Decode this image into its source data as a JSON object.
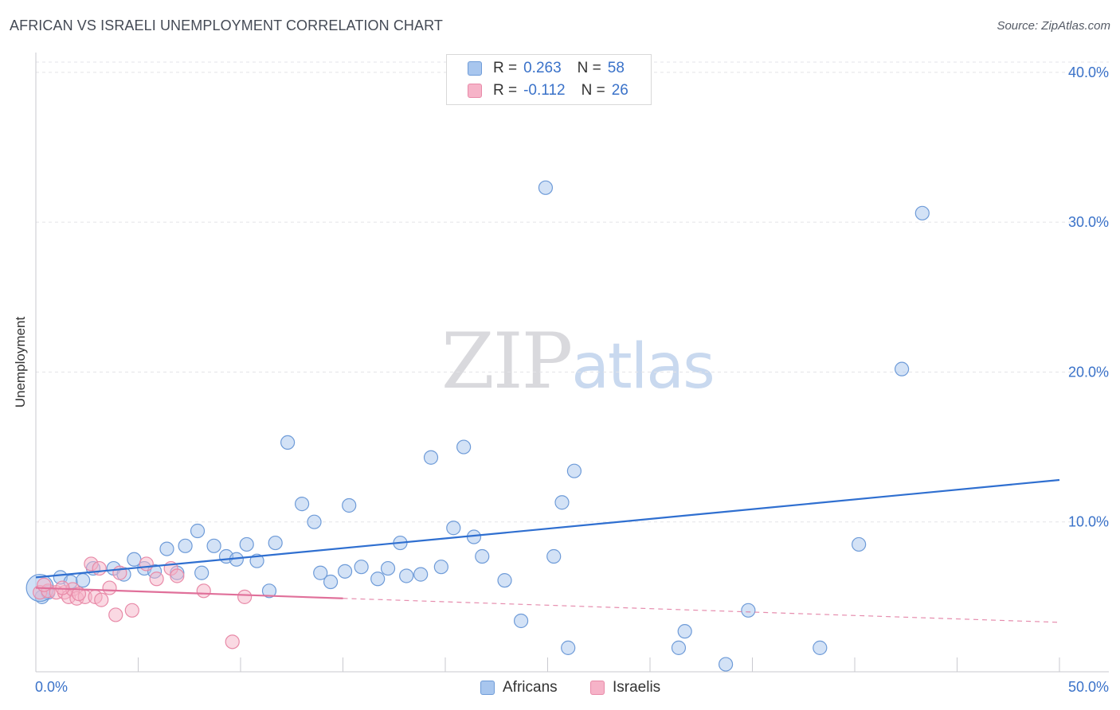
{
  "title": "AFRICAN VS ISRAELI UNEMPLOYMENT CORRELATION CHART",
  "source": "Source: ZipAtlas.com",
  "watermark": {
    "zip": "ZIP",
    "atlas": "atlas"
  },
  "legend": {
    "rows": [
      {
        "r_label": "R =",
        "r_value": "0.263",
        "n_label": "N =",
        "n_value": "58",
        "color": "#a8c6ee"
      },
      {
        "r_label": "R =",
        "r_value": "-0.112",
        "n_label": "N =",
        "n_value": "26",
        "color": "#f6b3c8"
      }
    ]
  },
  "bottom_legend": [
    {
      "label": "Africans",
      "color": "#a8c6ee"
    },
    {
      "label": "Israelis",
      "color": "#f6b3c8"
    }
  ],
  "chart_data": {
    "type": "scatter",
    "xlabel": "",
    "ylabel": "Unemployment",
    "xlim": [
      0,
      50
    ],
    "ylim": [
      0,
      41
    ],
    "x_tick_labels": [
      "0.0%",
      "50.0%"
    ],
    "y_ticks": [
      10,
      20,
      30,
      40
    ],
    "y_tick_labels": [
      "10.0%",
      "20.0%",
      "30.0%",
      "40.0%"
    ],
    "grid": true,
    "series": [
      {
        "name": "Africans",
        "color": "#a8c6ee",
        "stroke": "#6e9bd8",
        "trend": {
          "x": [
            0,
            50
          ],
          "y": [
            6.3,
            12.8
          ],
          "color": "#2f6fd0"
        },
        "points": [
          [
            0.3,
            5.0
          ],
          [
            0.6,
            5.3
          ],
          [
            1.2,
            6.3
          ],
          [
            1.7,
            6.0
          ],
          [
            2.3,
            6.1
          ],
          [
            2.8,
            6.9
          ],
          [
            3.8,
            6.9
          ],
          [
            4.3,
            6.5
          ],
          [
            4.8,
            7.5
          ],
          [
            5.3,
            6.9
          ],
          [
            5.8,
            6.7
          ],
          [
            6.4,
            8.2
          ],
          [
            6.9,
            6.6
          ],
          [
            7.3,
            8.4
          ],
          [
            7.9,
            9.4
          ],
          [
            8.1,
            6.6
          ],
          [
            8.7,
            8.4
          ],
          [
            9.3,
            7.7
          ],
          [
            9.8,
            7.5
          ],
          [
            10.3,
            8.5
          ],
          [
            10.8,
            7.4
          ],
          [
            11.4,
            5.4
          ],
          [
            11.7,
            8.6
          ],
          [
            12.3,
            15.3
          ],
          [
            13.0,
            11.2
          ],
          [
            13.6,
            10.0
          ],
          [
            13.9,
            6.6
          ],
          [
            14.4,
            6.0
          ],
          [
            15.1,
            6.7
          ],
          [
            15.3,
            11.1
          ],
          [
            15.9,
            7.0
          ],
          [
            16.7,
            6.2
          ],
          [
            17.2,
            6.9
          ],
          [
            17.8,
            8.6
          ],
          [
            18.1,
            6.4
          ],
          [
            18.8,
            6.5
          ],
          [
            19.3,
            14.3
          ],
          [
            19.8,
            7.0
          ],
          [
            20.4,
            9.6
          ],
          [
            20.9,
            15.0
          ],
          [
            21.4,
            9.0
          ],
          [
            21.8,
            7.7
          ],
          [
            22.9,
            6.1
          ],
          [
            23.7,
            3.4
          ],
          [
            24.9,
            32.3
          ],
          [
            25.3,
            7.7
          ],
          [
            25.7,
            11.3
          ],
          [
            26.0,
            1.6
          ],
          [
            26.3,
            13.4
          ],
          [
            31.4,
            1.6
          ],
          [
            31.7,
            2.7
          ],
          [
            33.7,
            0.5
          ],
          [
            34.8,
            4.1
          ],
          [
            38.3,
            1.6
          ],
          [
            40.2,
            8.5
          ],
          [
            42.3,
            20.2
          ],
          [
            43.3,
            30.6
          ],
          [
            0.2,
            5.6
          ]
        ]
      },
      {
        "name": "Israelis",
        "color": "#f6b3c8",
        "stroke": "#e88aa8",
        "trend": {
          "x": [
            0,
            15
          ],
          "y": [
            5.6,
            4.9
          ],
          "color": "#e0709a",
          "dashed_extension": {
            "x": [
              15,
              50
            ],
            "y": [
              4.9,
              3.3
            ]
          }
        },
        "points": [
          [
            0.2,
            5.3
          ],
          [
            0.6,
            5.4
          ],
          [
            1.0,
            5.3
          ],
          [
            1.4,
            5.3
          ],
          [
            1.6,
            5.0
          ],
          [
            1.8,
            5.5
          ],
          [
            2.0,
            4.9
          ],
          [
            2.4,
            5.0
          ],
          [
            2.7,
            7.2
          ],
          [
            2.9,
            5.0
          ],
          [
            3.1,
            6.9
          ],
          [
            3.2,
            4.8
          ],
          [
            3.6,
            5.6
          ],
          [
            3.9,
            3.8
          ],
          [
            4.1,
            6.6
          ],
          [
            4.7,
            4.1
          ],
          [
            5.4,
            7.2
          ],
          [
            5.9,
            6.2
          ],
          [
            6.6,
            6.9
          ],
          [
            6.9,
            6.4
          ],
          [
            8.2,
            5.4
          ],
          [
            9.6,
            2.0
          ],
          [
            10.2,
            5.0
          ],
          [
            0.4,
            5.8
          ],
          [
            1.3,
            5.6
          ],
          [
            2.1,
            5.2
          ]
        ]
      }
    ]
  }
}
